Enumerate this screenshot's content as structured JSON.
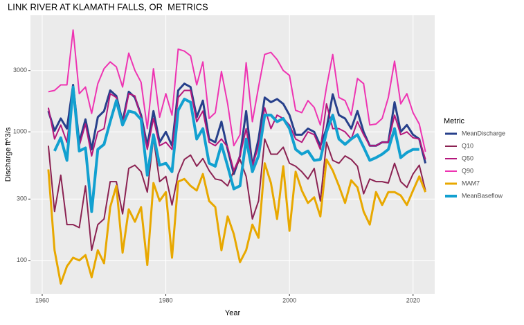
{
  "chart_data": {
    "type": "line",
    "title": "LINK RIVER AT KLAMATH FALLS, OR  METRICS",
    "x_label": "Year",
    "y_label": "Discharge ft^3/s",
    "legend_title": "Metric",
    "legend": "right",
    "grid": true,
    "log_y": true,
    "background": "#ebebeb",
    "xlim": [
      1958.1,
      2023.5
    ],
    "xticks": [
      1960,
      1980,
      2000,
      2020
    ],
    "ylim": [
      55,
      8070
    ],
    "yticks": [
      100,
      300,
      1000,
      3000
    ],
    "x": [
      1961,
      1962,
      1963,
      1964,
      1965,
      1966,
      1967,
      1968,
      1969,
      1970,
      1971,
      1972,
      1973,
      1974,
      1975,
      1976,
      1977,
      1978,
      1979,
      1980,
      1981,
      1982,
      1983,
      1984,
      1985,
      1986,
      1987,
      1988,
      1989,
      1990,
      1991,
      1992,
      1993,
      1994,
      1995,
      1996,
      1997,
      1998,
      1999,
      2000,
      2001,
      2002,
      2003,
      2004,
      2005,
      2006,
      2007,
      2008,
      2009,
      2010,
      2011,
      2012,
      2013,
      2014,
      2015,
      2016,
      2017,
      2018,
      2019,
      2020,
      2021,
      2022
    ],
    "series": [
      {
        "name": "MeanDischarge",
        "color": "#27408b",
        "linewidth": 3,
        "values": [
          1450,
          1020,
          1270,
          1060,
          2320,
          830,
          1250,
          730,
          1300,
          1450,
          2100,
          1900,
          1200,
          2050,
          1850,
          1350,
          780,
          1450,
          830,
          1000,
          780,
          2100,
          2370,
          2230,
          1300,
          1750,
          880,
          830,
          1200,
          730,
          470,
          650,
          1450,
          540,
          880,
          1850,
          1700,
          1800,
          1650,
          1350,
          950,
          950,
          1060,
          1000,
          780,
          1060,
          1960,
          1350,
          1270,
          1060,
          1450,
          1000,
          780,
          780,
          830,
          830,
          1700,
          1000,
          1130,
          950,
          880,
          570
        ]
      },
      {
        "name": "Q10",
        "color": "#8b2252",
        "linewidth": 2,
        "values": [
          780,
          240,
          460,
          190,
          190,
          180,
          380,
          120,
          190,
          210,
          410,
          410,
          230,
          520,
          550,
          490,
          340,
          900,
          410,
          450,
          270,
          470,
          610,
          660,
          540,
          620,
          500,
          430,
          420,
          380,
          500,
          610,
          450,
          210,
          290,
          880,
          670,
          670,
          760,
          570,
          540,
          490,
          430,
          520,
          290,
          830,
          600,
          570,
          650,
          610,
          540,
          330,
          430,
          410,
          410,
          400,
          570,
          410,
          370,
          470,
          550,
          350
        ]
      },
      {
        "name": "Q50",
        "color": "#b4177c",
        "linewidth": 2,
        "values": [
          1540,
          880,
          1130,
          830,
          2100,
          780,
          1150,
          650,
          1000,
          1060,
          1980,
          1850,
          1130,
          1980,
          1900,
          1300,
          730,
          1270,
          780,
          830,
          730,
          1850,
          2100,
          2100,
          1200,
          1450,
          830,
          780,
          880,
          760,
          500,
          650,
          1060,
          540,
          780,
          1540,
          1060,
          1350,
          1270,
          1130,
          880,
          830,
          1000,
          950,
          730,
          1650,
          1060,
          1060,
          1000,
          880,
          1200,
          950,
          780,
          780,
          830,
          830,
          1350,
          950,
          1000,
          900,
          880,
          610
        ]
      },
      {
        "name": "Q90",
        "color": "#ee34b2",
        "linewidth": 2,
        "values": [
          2050,
          2100,
          2320,
          2320,
          6200,
          1980,
          2230,
          1390,
          2370,
          3100,
          3500,
          3200,
          2230,
          4100,
          3000,
          2430,
          1060,
          3100,
          1300,
          1980,
          1350,
          4400,
          4250,
          3900,
          2320,
          3500,
          1270,
          1410,
          2950,
          1650,
          780,
          950,
          3450,
          1200,
          2230,
          4000,
          4150,
          3650,
          3000,
          2750,
          1470,
          1410,
          1750,
          1550,
          1130,
          2230,
          4000,
          1850,
          1750,
          1350,
          2600,
          2370,
          1130,
          1150,
          1270,
          1850,
          3550,
          1650,
          1980,
          1410,
          1150,
          700
        ]
      },
      {
        "name": "MAM7",
        "color": "#e8a800",
        "linewidth": 3,
        "values": [
          510,
          120,
          66,
          90,
          105,
          100,
          110,
          74,
          120,
          95,
          260,
          380,
          115,
          250,
          200,
          260,
          92,
          400,
          290,
          340,
          105,
          410,
          430,
          380,
          350,
          470,
          290,
          260,
          120,
          220,
          160,
          97,
          120,
          190,
          150,
          570,
          400,
          210,
          540,
          170,
          490,
          350,
          280,
          310,
          220,
          610,
          500,
          380,
          280,
          420,
          370,
          240,
          190,
          340,
          270,
          340,
          340,
          320,
          270,
          350,
          450,
          340
        ]
      },
      {
        "name": "MeanBaseflow",
        "color": "#12a0d0",
        "linewidth": 4,
        "values": [
          null,
          710,
          900,
          600,
          2230,
          710,
          750,
          240,
          730,
          800,
          1200,
          1750,
          1130,
          1450,
          1410,
          1250,
          460,
          950,
          550,
          570,
          490,
          1470,
          1800,
          1700,
          880,
          1060,
          570,
          540,
          800,
          540,
          360,
          380,
          880,
          490,
          650,
          1350,
          1350,
          1200,
          1270,
          1060,
          730,
          670,
          710,
          600,
          610,
          1000,
          1350,
          880,
          800,
          880,
          950,
          760,
          600,
          630,
          670,
          730,
          1060,
          630,
          690,
          730,
          730,
          null
        ]
      }
    ]
  }
}
